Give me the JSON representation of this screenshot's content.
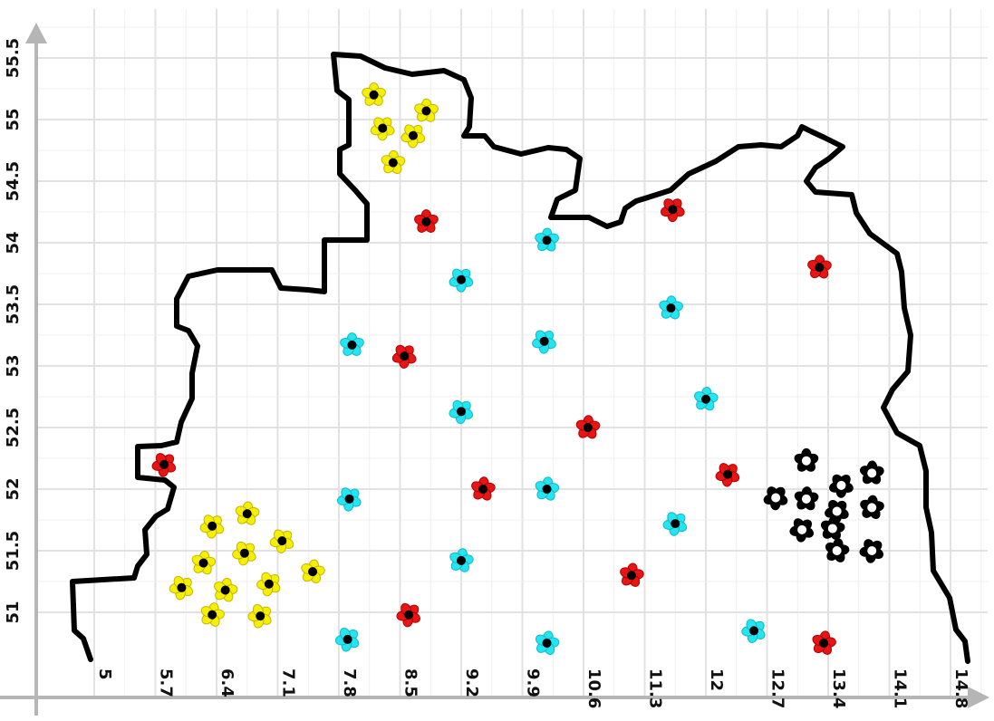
{
  "x_ticks": [
    "5",
    "5.7",
    "6.4",
    "7.1",
    "7.8",
    "8.5",
    "9.2",
    "9.9",
    "10.6",
    "11.3",
    "12",
    "12.7",
    "13.4",
    "14.1",
    "14.8"
  ],
  "y_ticks": [
    "51",
    "51.5",
    "52",
    "52.5",
    "53",
    "53.5",
    "54",
    "54.5",
    "55",
    "55.5"
  ],
  "colors": {
    "yellow": "#f5f000",
    "cyan": "#22e6f2",
    "red": "#e81515",
    "black": "#000000",
    "grid": "#e2e2e2",
    "axis": "#b5b5b5"
  },
  "chart_data": {
    "type": "scatter",
    "xlim": [
      4.85,
      15.0
    ],
    "ylim": [
      50.68,
      55.6
    ],
    "grid": true,
    "x_ticks": [
      5,
      5.7,
      6.4,
      7.1,
      7.8,
      8.5,
      9.2,
      9.9,
      10.6,
      11.3,
      12,
      12.7,
      13.4,
      14.1,
      14.8
    ],
    "y_ticks": [
      51,
      51.5,
      52,
      52.5,
      53,
      53.5,
      54,
      54.5,
      55,
      55.5
    ],
    "series": [
      {
        "marker": "yellow-flower",
        "points": [
          [
            8.2,
            55.2
          ],
          [
            8.3,
            54.93
          ],
          [
            8.8,
            55.07
          ],
          [
            8.65,
            54.87
          ],
          [
            8.42,
            54.65
          ],
          [
            6.35,
            51.7
          ],
          [
            6.75,
            51.8
          ],
          [
            7.15,
            51.58
          ],
          [
            6.25,
            51.4
          ],
          [
            6.72,
            51.48
          ],
          [
            7.5,
            51.33
          ],
          [
            6.0,
            51.2
          ],
          [
            6.5,
            51.18
          ],
          [
            7.0,
            51.23
          ],
          [
            6.35,
            50.98
          ],
          [
            6.9,
            50.97
          ]
        ]
      },
      {
        "marker": "cyan-flower",
        "points": [
          [
            7.95,
            53.17
          ],
          [
            9.2,
            53.7
          ],
          [
            10.18,
            54.02
          ],
          [
            10.15,
            53.2
          ],
          [
            11.6,
            53.47
          ],
          [
            9.2,
            52.63
          ],
          [
            12.0,
            52.73
          ],
          [
            7.92,
            51.92
          ],
          [
            10.18,
            52.0
          ],
          [
            11.65,
            51.72
          ],
          [
            9.2,
            51.42
          ],
          [
            7.9,
            50.78
          ],
          [
            10.18,
            50.75
          ],
          [
            12.55,
            50.85
          ]
        ]
      },
      {
        "marker": "red-flower",
        "points": [
          [
            8.8,
            54.17
          ],
          [
            11.62,
            54.27
          ],
          [
            13.3,
            53.8
          ],
          [
            8.55,
            53.08
          ],
          [
            10.65,
            52.5
          ],
          [
            12.25,
            52.12
          ],
          [
            9.45,
            52.0
          ],
          [
            5.8,
            52.2
          ],
          [
            11.15,
            51.3
          ],
          [
            8.6,
            50.98
          ],
          [
            13.35,
            50.75
          ]
        ]
      },
      {
        "marker": "black-flower",
        "points": [
          [
            13.15,
            52.23
          ],
          [
            13.55,
            52.03
          ],
          [
            13.9,
            52.13
          ],
          [
            12.8,
            51.93
          ],
          [
            13.15,
            51.92
          ],
          [
            13.5,
            51.82
          ],
          [
            13.9,
            51.85
          ],
          [
            13.1,
            51.67
          ],
          [
            13.45,
            51.68
          ],
          [
            13.9,
            51.5
          ],
          [
            13.5,
            51.5
          ]
        ]
      }
    ]
  }
}
